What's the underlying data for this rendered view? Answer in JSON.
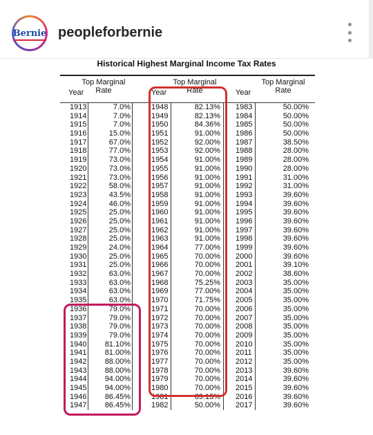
{
  "header": {
    "avatar_text": "Bernie",
    "username": "peopleforbernie",
    "more_icon": "more-vertical-icon"
  },
  "doc": {
    "title": "Historical Highest Marginal Income Tax Rates",
    "col_year": "Year",
    "col_rate_line1": "Top Marginal",
    "col_rate_line2": "Rate",
    "columns": [
      {
        "rows": [
          [
            "1913",
            "7.0%"
          ],
          [
            "1914",
            "7.0%"
          ],
          [
            "1915",
            "7.0%"
          ],
          [
            "1916",
            "15.0%"
          ],
          [
            "1917",
            "67.0%"
          ],
          [
            "1918",
            "77.0%"
          ],
          [
            "1919",
            "73.0%"
          ],
          [
            "1920",
            "73.0%"
          ],
          [
            "1921",
            "73.0%"
          ],
          [
            "1922",
            "58.0%"
          ],
          [
            "1923",
            "43.5%"
          ],
          [
            "1924",
            "46.0%"
          ],
          [
            "1925",
            "25.0%"
          ],
          [
            "1926",
            "25.0%"
          ],
          [
            "1927",
            "25.0%"
          ],
          [
            "1928",
            "25.0%"
          ],
          [
            "1929",
            "24.0%"
          ],
          [
            "1930",
            "25.0%"
          ],
          [
            "1931",
            "25.0%"
          ],
          [
            "1932",
            "63.0%"
          ],
          [
            "1933",
            "63.0%"
          ],
          [
            "1934",
            "63.0%"
          ],
          [
            "1935",
            "63.0%"
          ],
          [
            "1936",
            "79.0%"
          ],
          [
            "1937",
            "79.0%"
          ],
          [
            "1938",
            "79.0%"
          ],
          [
            "1939",
            "79.0%"
          ],
          [
            "1940",
            "81.10%"
          ],
          [
            "1941",
            "81.00%"
          ],
          [
            "1942",
            "88.00%"
          ],
          [
            "1943",
            "88.00%"
          ],
          [
            "1944",
            "94.00%"
          ],
          [
            "1945",
            "94.00%"
          ],
          [
            "1946",
            "86.45%"
          ],
          [
            "1947",
            "86.45%"
          ]
        ]
      },
      {
        "rows": [
          [
            "1948",
            "82.13%"
          ],
          [
            "1949",
            "82.13%"
          ],
          [
            "1950",
            "84.36%"
          ],
          [
            "1951",
            "91.00%"
          ],
          [
            "1952",
            "92.00%"
          ],
          [
            "1953",
            "92.00%"
          ],
          [
            "1954",
            "91.00%"
          ],
          [
            "1955",
            "91.00%"
          ],
          [
            "1956",
            "91.00%"
          ],
          [
            "1957",
            "91.00%"
          ],
          [
            "1958",
            "91.00%"
          ],
          [
            "1959",
            "91.00%"
          ],
          [
            "1960",
            "91.00%"
          ],
          [
            "1961",
            "91.00%"
          ],
          [
            "1962",
            "91.00%"
          ],
          [
            "1963",
            "91.00%"
          ],
          [
            "1964",
            "77.00%"
          ],
          [
            "1965",
            "70.00%"
          ],
          [
            "1966",
            "70.00%"
          ],
          [
            "1967",
            "70.00%"
          ],
          [
            "1968",
            "75.25%"
          ],
          [
            "1969",
            "77.00%"
          ],
          [
            "1970",
            "71.75%"
          ],
          [
            "1971",
            "70.00%"
          ],
          [
            "1972",
            "70.00%"
          ],
          [
            "1973",
            "70.00%"
          ],
          [
            "1974",
            "70.00%"
          ],
          [
            "1975",
            "70.00%"
          ],
          [
            "1976",
            "70.00%"
          ],
          [
            "1977",
            "70.00%"
          ],
          [
            "1978",
            "70.00%"
          ],
          [
            "1979",
            "70.00%"
          ],
          [
            "1980",
            "70.00%"
          ],
          [
            "1981",
            "69.13%"
          ],
          [
            "1982",
            "50.00%"
          ]
        ]
      },
      {
        "rows": [
          [
            "1983",
            "50.00%"
          ],
          [
            "1984",
            "50.00%"
          ],
          [
            "1985",
            "50.00%"
          ],
          [
            "1986",
            "50.00%"
          ],
          [
            "1987",
            "38.50%"
          ],
          [
            "1988",
            "28.00%"
          ],
          [
            "1989",
            "28.00%"
          ],
          [
            "1990",
            "28.00%"
          ],
          [
            "1991",
            "31.00%"
          ],
          [
            "1992",
            "31.00%"
          ],
          [
            "1993",
            "39.60%"
          ],
          [
            "1994",
            "39.60%"
          ],
          [
            "1995",
            "39.60%"
          ],
          [
            "1996",
            "39.60%"
          ],
          [
            "1997",
            "39.60%"
          ],
          [
            "1998",
            "39.60%"
          ],
          [
            "1999",
            "39.60%"
          ],
          [
            "2000",
            "39.60%"
          ],
          [
            "2001",
            "39.10%"
          ],
          [
            "2002",
            "38.60%"
          ],
          [
            "2003",
            "35.00%"
          ],
          [
            "2004",
            "35.00%"
          ],
          [
            "2005",
            "35.00%"
          ],
          [
            "2006",
            "35.00%"
          ],
          [
            "2007",
            "35.00%"
          ],
          [
            "2008",
            "35.00%"
          ],
          [
            "2009",
            "35.00%"
          ],
          [
            "2010",
            "35.00%"
          ],
          [
            "2011",
            "35.00%"
          ],
          [
            "2012",
            "35.00%"
          ],
          [
            "2013",
            "39.60%"
          ],
          [
            "2014",
            "39.60%"
          ],
          [
            "2015",
            "39.60%"
          ],
          [
            "2016",
            "39.60%"
          ],
          [
            "2017",
            "39.60%"
          ]
        ]
      }
    ]
  },
  "highlights": {
    "left_color": "#c2185b",
    "middle_color": "#d32f2f"
  }
}
